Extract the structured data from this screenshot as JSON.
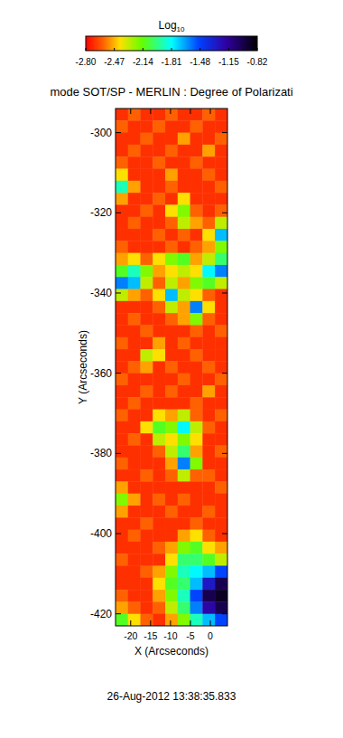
{
  "chart_data": {
    "type": "heatmap",
    "title": "mode SOT/SP - MERLIN : Degree of Polarizati",
    "x_label": "X (Arcseconds)",
    "y_label": "Y (Arcseconds)",
    "annotations": [
      "26-Aug-2012 13:38:35.833"
    ],
    "xlim": [
      -23.8,
      4.3
    ],
    "ylim": [
      -423,
      -294
    ],
    "xticks": [
      -20,
      -15,
      -10,
      -5,
      0
    ],
    "yticks": [
      -300,
      -320,
      -340,
      -360,
      -380,
      -400,
      -420
    ],
    "colorbar": {
      "label": "Log10",
      "range": [
        -2.8,
        -0.82
      ],
      "ticks": [
        {
          "value": -2.8,
          "label": "-2.80"
        },
        -2.47,
        -2.14,
        -1.81,
        -1.48,
        -1.15,
        -0.82
      ]
    },
    "x": [
      -22.25,
      -19.13,
      -16.01,
      -12.89,
      -9.77,
      -6.65,
      -3.53,
      -0.41,
      2.71
    ],
    "y": [
      -295.5,
      -298.5,
      -301.5,
      -304.5,
      -307.5,
      -310.5,
      -313.5,
      -316.5,
      -319.5,
      -322.5,
      -325.5,
      -328.5,
      -331.5,
      -334.5,
      -337.5,
      -340.5,
      -343.5,
      -346.5,
      -349.5,
      -352.5,
      -355.5,
      -358.5,
      -361.5,
      -364.5,
      -367.5,
      -370.5,
      -373.5,
      -376.5,
      -379.5,
      -382.5,
      -385.5,
      -388.5,
      -391.5,
      -394.5,
      -397.5,
      -400.5,
      -403.5,
      -406.5,
      -409.5,
      -412.5,
      -415.5,
      -418.5,
      -421.5
    ],
    "cells": [
      [
        -2.7,
        -2.6,
        -2.7,
        -2.7,
        -2.6,
        -2.7,
        -2.7,
        -2.6,
        -2.7
      ],
      [
        -2.6,
        -2.7,
        -2.7,
        -2.6,
        -2.7,
        -2.7,
        -2.6,
        -2.7,
        -2.7
      ],
      [
        -2.7,
        -2.7,
        -2.6,
        -2.7,
        -2.7,
        -2.5,
        -2.7,
        -2.7,
        -2.6
      ],
      [
        -2.7,
        -2.6,
        -2.7,
        -2.7,
        -2.6,
        -2.7,
        -2.7,
        -2.5,
        -2.7
      ],
      [
        -2.6,
        -2.7,
        -2.7,
        -2.6,
        -2.7,
        -2.7,
        -2.6,
        -2.7,
        -2.7
      ],
      [
        -2.4,
        -2.7,
        -2.7,
        -2.7,
        -2.5,
        -2.7,
        -2.7,
        -2.6,
        -2.7
      ],
      [
        -1.9,
        -2.5,
        -2.7,
        -2.7,
        -2.6,
        -2.7,
        -2.7,
        -2.7,
        -2.6
      ],
      [
        -2.5,
        -2.7,
        -2.7,
        -2.6,
        -2.7,
        -2.4,
        -2.7,
        -2.7,
        -2.7
      ],
      [
        -2.7,
        -2.7,
        -2.6,
        -2.7,
        -2.4,
        -2.2,
        -2.6,
        -2.7,
        -2.6
      ],
      [
        -2.7,
        -2.6,
        -2.7,
        -2.7,
        -2.6,
        -2.3,
        -2.5,
        -2.6,
        -2.3
      ],
      [
        -2.7,
        -2.7,
        -2.7,
        -2.6,
        -2.7,
        -2.6,
        -2.7,
        -2.4,
        -1.7
      ],
      [
        -2.6,
        -2.7,
        -2.7,
        -2.7,
        -2.6,
        -2.7,
        -2.6,
        -2.5,
        -2.2
      ],
      [
        -2.5,
        -2.4,
        -2.6,
        -2.4,
        -2.2,
        -2.1,
        -2.5,
        -2.3,
        -2.0
      ],
      [
        -2.1,
        -1.9,
        -2.2,
        -2.5,
        -2.4,
        -2.3,
        -2.4,
        -1.8,
        -1.6
      ],
      [
        -1.6,
        -1.7,
        -2.3,
        -2.6,
        -2.3,
        -2.5,
        -2.2,
        -2.1,
        -2.3
      ],
      [
        -2.3,
        -2.5,
        -2.6,
        -2.4,
        -1.7,
        -2.3,
        -2.4,
        -2.6,
        -2.7
      ],
      [
        -2.7,
        -2.7,
        -2.7,
        -2.6,
        -2.3,
        -2.5,
        -1.6,
        -2.4,
        -2.7
      ],
      [
        -2.7,
        -2.6,
        -2.7,
        -2.7,
        -2.6,
        -2.5,
        -2.2,
        -2.6,
        -2.7
      ],
      [
        -2.7,
        -2.7,
        -2.6,
        -2.7,
        -2.7,
        -2.7,
        -2.6,
        -2.7,
        -2.6
      ],
      [
        -2.6,
        -2.7,
        -2.7,
        -2.5,
        -2.7,
        -2.6,
        -2.7,
        -2.7,
        -2.7
      ],
      [
        -2.7,
        -2.7,
        -2.3,
        -2.4,
        -2.7,
        -2.7,
        -2.6,
        -2.7,
        -2.7
      ],
      [
        -2.7,
        -2.6,
        -2.5,
        -2.7,
        -2.6,
        -2.7,
        -2.7,
        -2.6,
        -2.7
      ],
      [
        -2.6,
        -2.7,
        -2.7,
        -2.7,
        -2.7,
        -2.6,
        -2.7,
        -2.7,
        -2.6
      ],
      [
        -2.7,
        -2.7,
        -2.6,
        -2.7,
        -2.6,
        -2.7,
        -2.7,
        -2.5,
        -2.7
      ],
      [
        -2.7,
        -2.6,
        -2.7,
        -2.7,
        -2.7,
        -2.7,
        -2.6,
        -2.7,
        -2.7
      ],
      [
        -2.6,
        -2.7,
        -2.7,
        -2.4,
        -2.5,
        -2.3,
        -2.6,
        -2.7,
        -2.6
      ],
      [
        -2.7,
        -2.7,
        -2.4,
        -2.1,
        -2.2,
        -1.8,
        -2.3,
        -2.6,
        -2.7
      ],
      [
        -2.7,
        -2.6,
        -2.7,
        -2.3,
        -2.4,
        -2.2,
        -2.4,
        -2.7,
        -2.7
      ],
      [
        -2.7,
        -2.7,
        -2.7,
        -2.6,
        -2.3,
        -2.0,
        -2.5,
        -2.7,
        -2.6
      ],
      [
        -2.6,
        -2.7,
        -2.7,
        -2.7,
        -2.5,
        -1.6,
        -2.2,
        -2.7,
        -2.7
      ],
      [
        -2.7,
        -2.7,
        -2.6,
        -2.7,
        -2.6,
        -2.3,
        -2.6,
        -2.6,
        -2.7
      ],
      [
        -2.5,
        -2.7,
        -2.7,
        -2.7,
        -2.7,
        -2.7,
        -2.7,
        -2.7,
        -2.6
      ],
      [
        -2.2,
        -2.5,
        -2.7,
        -2.6,
        -2.7,
        -2.6,
        -2.7,
        -2.7,
        -2.7
      ],
      [
        -2.5,
        -2.7,
        -2.7,
        -2.7,
        -2.6,
        -2.7,
        -2.7,
        -2.6,
        -2.7
      ],
      [
        -2.7,
        -2.7,
        -2.6,
        -2.7,
        -2.7,
        -2.7,
        -2.6,
        -2.7,
        -2.7
      ],
      [
        -2.7,
        -2.6,
        -2.7,
        -2.7,
        -2.7,
        -2.5,
        -2.4,
        -2.6,
        -2.7
      ],
      [
        -2.7,
        -2.7,
        -2.7,
        -2.6,
        -2.5,
        -2.2,
        -2.1,
        -2.4,
        -2.5
      ],
      [
        -2.6,
        -2.7,
        -2.7,
        -2.7,
        -2.4,
        -2.0,
        -2.0,
        -2.1,
        -2.3
      ],
      [
        -2.7,
        -2.7,
        -2.6,
        -2.5,
        -2.2,
        -1.9,
        -1.8,
        -1.7,
        -1.5
      ],
      [
        -2.7,
        -2.7,
        -2.7,
        -2.4,
        -2.1,
        -2.0,
        -1.7,
        -1.3,
        -1.0
      ],
      [
        -2.6,
        -2.7,
        -2.7,
        -2.5,
        -2.2,
        -1.9,
        -1.5,
        -1.0,
        -0.9
      ],
      [
        -2.5,
        -2.6,
        -2.7,
        -2.6,
        -2.3,
        -2.0,
        -1.6,
        -1.2,
        -1.0
      ],
      [
        -2.1,
        -2.4,
        -2.6,
        -2.7,
        -2.5,
        -2.2,
        -1.9,
        -1.7,
        -1.5
      ]
    ]
  }
}
